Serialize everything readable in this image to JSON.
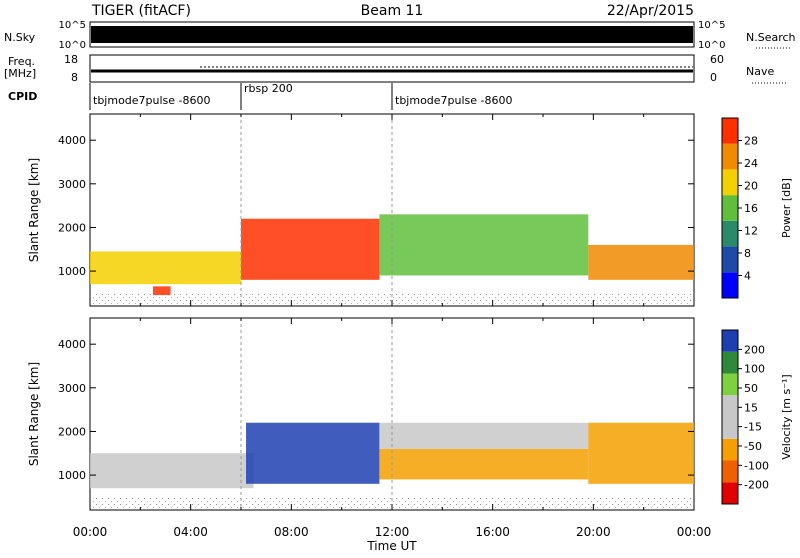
{
  "header": {
    "radar": "TIGER (fitACF)",
    "beam": "Beam 11",
    "date": "22/Apr/2015"
  },
  "top_panels": {
    "nsky_label": "N.Sky",
    "nsky_ticks": [
      "10^5",
      "10^0"
    ],
    "nsearch_label": "N.Search",
    "nsearch_ticks": [
      "10^5",
      "10^0"
    ],
    "freq_label": "Freq.",
    "freq_unit": "[MHz]",
    "freq_ticks": [
      "18",
      "8"
    ],
    "nave_label": "Nave",
    "nave_ticks": [
      "60",
      "0"
    ],
    "cpid_label": "CPID",
    "cpid_segments": [
      {
        "label": "tbjmode7pulse -8600",
        "start": 0,
        "end": 6
      },
      {
        "label": "rbsp 200",
        "start": 6,
        "end": 12
      },
      {
        "label": "tbjmode7pulse -8600",
        "start": 12,
        "end": 24
      }
    ]
  },
  "chart_data": [
    {
      "type": "heatmap",
      "panel": "power",
      "ylabel": "Slant Range [km]",
      "yticks": [
        "1000",
        "2000",
        "3000",
        "4000"
      ],
      "ylim": [
        200,
        4600
      ],
      "xlim": [
        0,
        24
      ],
      "colorbar_label": "Power [dB]",
      "colorbar_ticks": [
        "28",
        "24",
        "20",
        "16",
        "12",
        "8",
        "4"
      ],
      "colorbar_colors": [
        "#0000ff",
        "#1e4ba8",
        "#2a8a6a",
        "#5fbf3c",
        "#f5d000",
        "#f08a00",
        "#ff3000"
      ],
      "features": [
        {
          "t0": 0.0,
          "t1": 6.0,
          "r0": 700,
          "r1": 1450,
          "level": 20
        },
        {
          "t0": 2.5,
          "t1": 3.2,
          "r0": 450,
          "r1": 650,
          "level": 26
        },
        {
          "t0": 6.0,
          "t1": 11.5,
          "r0": 800,
          "r1": 2200,
          "level": 28
        },
        {
          "t0": 11.5,
          "t1": 19.8,
          "r0": 900,
          "r1": 2300,
          "level": 16
        },
        {
          "t0": 19.8,
          "t1": 24.0,
          "r0": 800,
          "r1": 1600,
          "level": 22
        }
      ]
    },
    {
      "type": "heatmap",
      "panel": "velocity",
      "ylabel": "Slant Range [km]",
      "yticks": [
        "1000",
        "2000",
        "3000",
        "4000"
      ],
      "ylim": [
        200,
        4600
      ],
      "xlim": [
        0,
        24
      ],
      "colorbar_label": "Velocity [m s⁻¹]",
      "colorbar_ticks": [
        "200",
        "100",
        "50",
        "15",
        "-15",
        "-50",
        "-100",
        "-200"
      ],
      "colorbar_colors": [
        "#e00000",
        "#f06000",
        "#f5a000",
        "#c8c8c8",
        "#c8c8c8",
        "#7fd040",
        "#2e8a3a",
        "#1e3fb0"
      ],
      "features": [
        {
          "t0": 0.0,
          "t1": 6.5,
          "r0": 700,
          "r1": 1500,
          "velocity": 0
        },
        {
          "t0": 6.2,
          "t1": 11.5,
          "r0": 800,
          "r1": 2200,
          "velocity": 150
        },
        {
          "t0": 11.5,
          "t1": 19.8,
          "r0": 900,
          "r1": 1600,
          "velocity": -60
        },
        {
          "t0": 11.5,
          "t1": 19.8,
          "r0": 1600,
          "r1": 2200,
          "velocity": 0
        },
        {
          "t0": 19.8,
          "t1": 24.0,
          "r0": 800,
          "r1": 2200,
          "velocity": -30
        }
      ]
    }
  ],
  "xaxis": {
    "label": "Time UT",
    "ticks": [
      "00:00",
      "04:00",
      "08:00",
      "12:00",
      "16:00",
      "20:00",
      "00:00"
    ]
  }
}
